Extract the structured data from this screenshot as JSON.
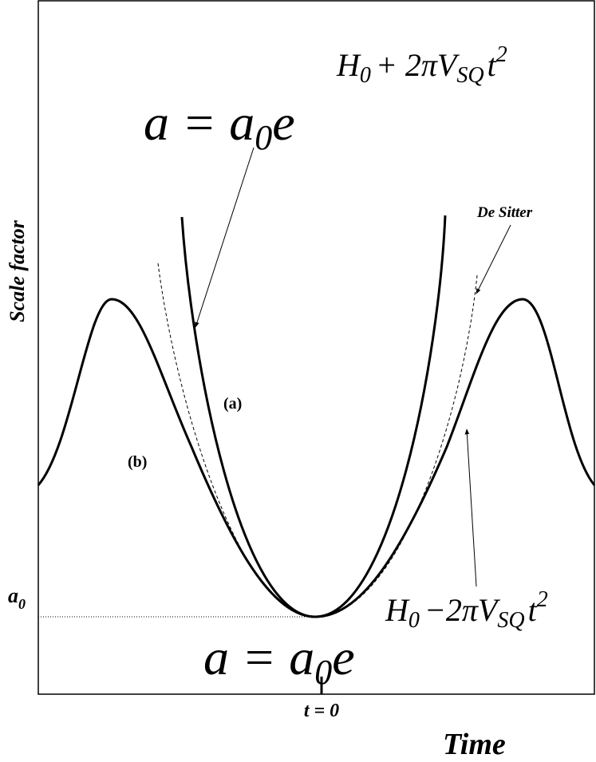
{
  "labels": {
    "y_axis": "Scale factor",
    "x_axis": "Time",
    "t0": "t = 0",
    "a0": {
      "base": "a",
      "sub": "0"
    },
    "curve_a": "(a)",
    "curve_b": "(b)",
    "de_sitter": "De Sitter"
  },
  "equation_top": {
    "lhs": "a = a",
    "lhs_sub": "0",
    "base": "e",
    "exponent": {
      "h": "H",
      "h_sub": "0",
      "op": "+ 2πV",
      "v_sub": "SQ",
      "t": "t",
      "power": "2"
    }
  },
  "equation_bottom": {
    "lhs": "a = a",
    "lhs_sub": "0",
    "base": "e",
    "exponent": {
      "h": "H",
      "h_sub": "0",
      "op": "−2πV",
      "v_sub": "SQ",
      "t": "t",
      "power": "2"
    }
  }
}
